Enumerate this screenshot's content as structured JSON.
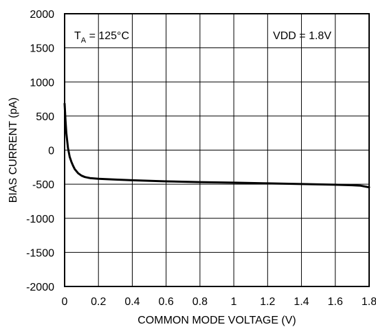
{
  "chart_data": {
    "type": "line",
    "title": "",
    "xlabel": "COMMON MODE VOLTAGE (V)",
    "ylabel": "BIAS CURRENT (pA)",
    "xlim": [
      0,
      1.8
    ],
    "ylim": [
      -2000,
      2000
    ],
    "x_ticks": [
      "0",
      "0.2",
      "0.4",
      "0.6",
      "0.8",
      "1",
      "1.2",
      "1.4",
      "1.6",
      "1.8"
    ],
    "y_ticks": [
      "2000",
      "1500",
      "1000",
      "500",
      "0",
      "-500",
      "-1000",
      "-1500",
      "-2000"
    ],
    "grid": true,
    "annotations": {
      "temp_prefix": "T",
      "temp_sub": "A",
      "temp_value": " = 125°C",
      "vdd": "VDD = 1.8V"
    },
    "series": [
      {
        "x": [
          0,
          0.005,
          0.01,
          0.02,
          0.03,
          0.04,
          0.05,
          0.06,
          0.08,
          0.1,
          0.12,
          0.15,
          0.2,
          0.3,
          0.4,
          0.6,
          0.8,
          1.0,
          1.2,
          1.4,
          1.6,
          1.7,
          1.75,
          1.8
        ],
        "y": [
          680,
          450,
          250,
          30,
          -100,
          -170,
          -230,
          -280,
          -340,
          -375,
          -395,
          -410,
          -420,
          -432,
          -442,
          -458,
          -470,
          -478,
          -488,
          -498,
          -508,
          -515,
          -522,
          -545
        ]
      }
    ]
  }
}
